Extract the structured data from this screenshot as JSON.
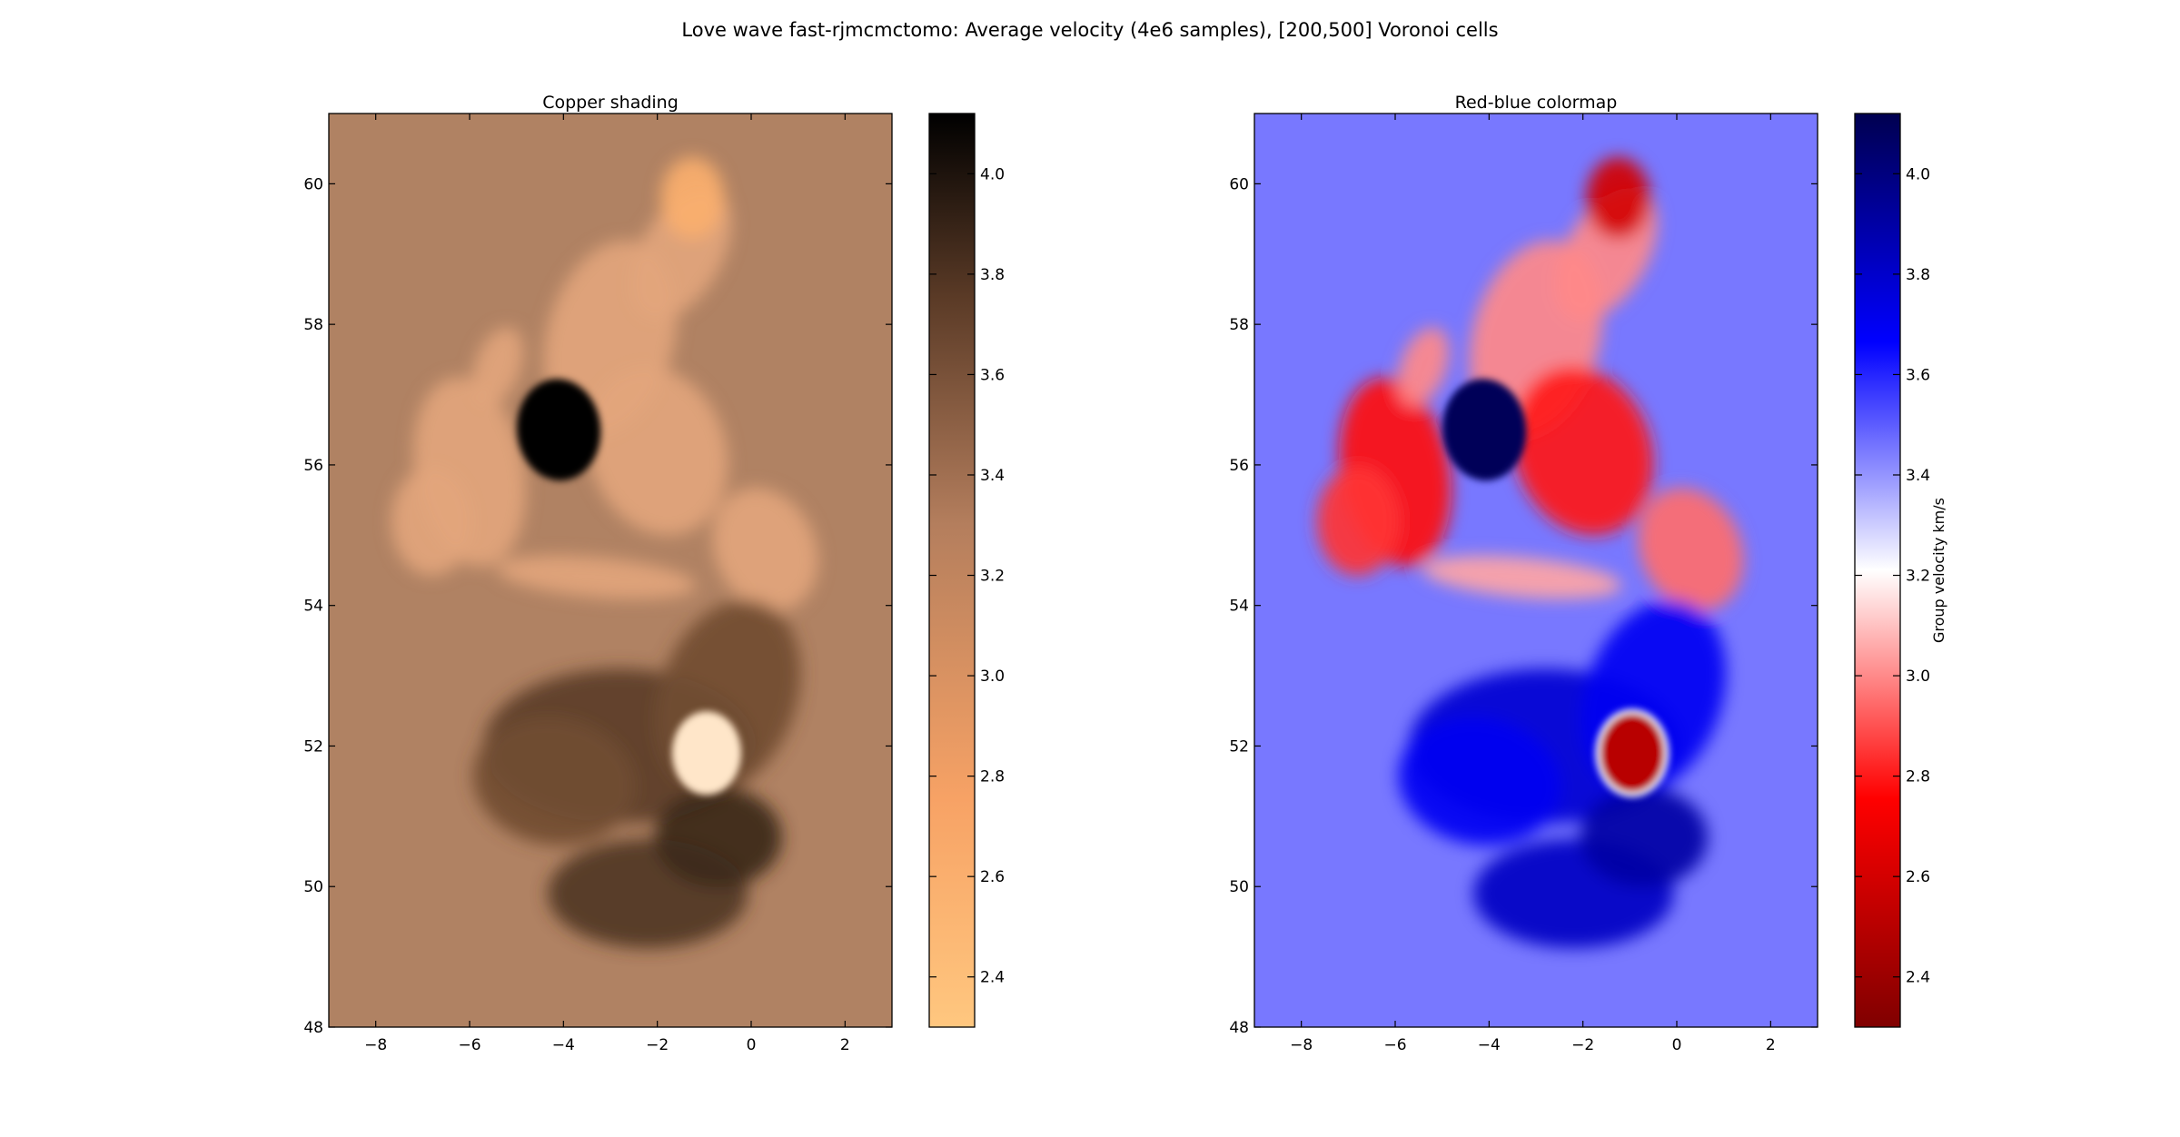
{
  "figure": {
    "suptitle": "Love wave fast-rjmcmctomo: Average velocity (4e6 samples), [200,500] Voronoi cells"
  },
  "chart_data": [
    {
      "type": "heatmap",
      "title": "Copper shading",
      "colormap": "copper (reversed, hill-shaded)",
      "xlabel": "",
      "ylabel": "",
      "xlim": [
        -9,
        3
      ],
      "ylim": [
        48,
        61
      ],
      "xticks": [
        -8,
        -6,
        -4,
        -2,
        0,
        2
      ],
      "yticks": [
        48,
        50,
        52,
        54,
        56,
        58,
        60
      ],
      "colorbar": {
        "label": "",
        "range": [
          2.3,
          4.12
        ],
        "ticks": [
          2.4,
          2.6,
          2.8,
          3.0,
          3.2,
          3.4,
          3.6,
          3.8,
          4.0
        ],
        "colors": [
          "#ffc77f",
          "#f7a265",
          "#b47e5d",
          "#7a5236",
          "#000000"
        ]
      }
    },
    {
      "type": "heatmap",
      "title": "Red-blue colormap",
      "colormap": "seismic_r",
      "xlabel": "",
      "ylabel": "",
      "xlim": [
        -9,
        3
      ],
      "ylim": [
        48,
        61
      ],
      "xticks": [
        -8,
        -6,
        -4,
        -2,
        0,
        2
      ],
      "yticks": [
        48,
        50,
        52,
        54,
        56,
        58,
        60
      ],
      "colorbar": {
        "label": "Group velocity km/s",
        "range": [
          2.3,
          4.12
        ],
        "ticks": [
          2.4,
          2.6,
          2.8,
          3.0,
          3.2,
          3.4,
          3.6,
          3.8,
          4.0
        ],
        "colors": [
          "#800000",
          "#ff0000",
          "#ffffff",
          "#0000ff",
          "#000050"
        ]
      }
    }
  ],
  "velocity_field": {
    "units": "km/s",
    "background": 3.45,
    "anomalies": [
      {
        "lon": -6.0,
        "lat": 55.9,
        "velocity": 2.78
      },
      {
        "lon": -6.8,
        "lat": 55.2,
        "velocity": 2.85
      },
      {
        "lon": -5.4,
        "lat": 57.4,
        "velocity": 3.0
      },
      {
        "lon": -3.0,
        "lat": 57.8,
        "velocity": 3.0
      },
      {
        "lon": -2.0,
        "lat": 56.2,
        "velocity": 2.8
      },
      {
        "lon": -1.5,
        "lat": 59.0,
        "velocity": 3.0
      },
      {
        "lon": -1.25,
        "lat": 59.8,
        "velocity": 2.6
      },
      {
        "lon": 0.3,
        "lat": 54.8,
        "velocity": 2.95
      },
      {
        "lon": -4.1,
        "lat": 56.5,
        "velocity": 4.1
      },
      {
        "lon": -3.3,
        "lat": 54.4,
        "velocity": 3.05
      },
      {
        "lon": -2.8,
        "lat": 52.0,
        "velocity": 3.78
      },
      {
        "lon": -4.2,
        "lat": 51.5,
        "velocity": 3.7
      },
      {
        "lon": -2.2,
        "lat": 49.9,
        "velocity": 3.82
      },
      {
        "lon": -0.5,
        "lat": 52.7,
        "velocity": 3.7
      },
      {
        "lon": -0.7,
        "lat": 50.7,
        "velocity": 3.9
      },
      {
        "lon": -0.95,
        "lat": 51.9,
        "velocity": 2.5
      }
    ]
  }
}
